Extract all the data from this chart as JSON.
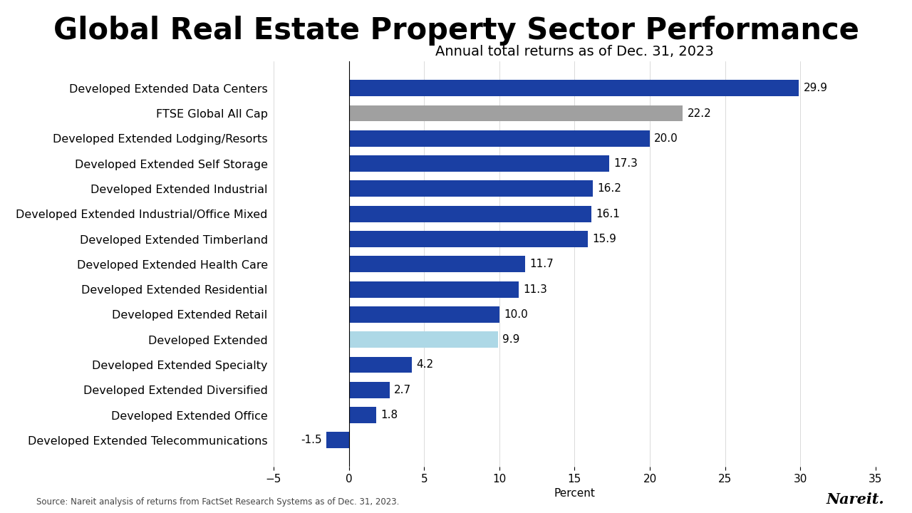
{
  "title": "Global Real Estate Property Sector Performance",
  "subtitle": "Annual total returns as of Dec. 31, 2023",
  "categories": [
    "Developed Extended Data Centers",
    "FTSE Global All Cap",
    "Developed Extended Lodging/Resorts",
    "Developed Extended Self Storage",
    "Developed Extended Industrial",
    "Developed Extended Industrial/Office Mixed",
    "Developed Extended Timberland",
    "Developed Extended Health Care",
    "Developed Extended Residential",
    "Developed Extended Retail",
    "Developed Extended",
    "Developed Extended Specialty",
    "Developed Extended Diversified",
    "Developed Extended Office",
    "Developed Extended Telecommunications"
  ],
  "values": [
    29.9,
    22.2,
    20.0,
    17.3,
    16.2,
    16.1,
    15.9,
    11.7,
    11.3,
    10.0,
    9.9,
    4.2,
    2.7,
    1.8,
    -1.5
  ],
  "colors": [
    "#1a3fa3",
    "#a0a0a0",
    "#1a3fa3",
    "#1a3fa3",
    "#1a3fa3",
    "#1a3fa3",
    "#1a3fa3",
    "#1a3fa3",
    "#1a3fa3",
    "#1a3fa3",
    "#add8e6",
    "#1a3fa3",
    "#1a3fa3",
    "#1a3fa3",
    "#1a3fa3"
  ],
  "xlabel": "Percent",
  "xlim": [
    -5,
    35
  ],
  "xticks": [
    -5,
    0,
    5,
    10,
    15,
    20,
    25,
    30,
    35
  ],
  "source_text": "Source: Nareit analysis of returns from FactSet Research Systems as of Dec. 31, 2023.",
  "nareit_text": "Nareit.",
  "bg_color": "#ffffff",
  "title_fontsize": 30,
  "subtitle_fontsize": 14,
  "label_fontsize": 11.5,
  "value_fontsize": 11,
  "axis_fontsize": 11
}
